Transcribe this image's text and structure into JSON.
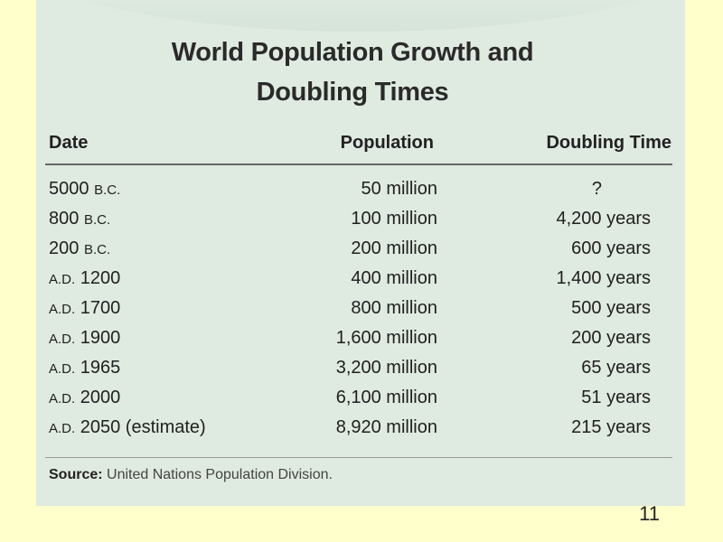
{
  "title_lines": [
    "World Population Growth and",
    "Doubling Times"
  ],
  "headers": {
    "date": "Date",
    "population": "Population",
    "doubling": "Doubling Time"
  },
  "rows": [
    {
      "date": "5000 B.C.",
      "population": "50 million",
      "doubling": "?"
    },
    {
      "date": "800 B.C.",
      "population": "100 million",
      "doubling": "4,200 years"
    },
    {
      "date": "200 B.C.",
      "population": "200 million",
      "doubling": "600 years"
    },
    {
      "date": "A.D. 1200",
      "population": "400 million",
      "doubling": "1,400 years"
    },
    {
      "date": "A.D. 1700",
      "population": "800 million",
      "doubling": "500 years"
    },
    {
      "date": "A.D. 1900",
      "population": "1,600 million",
      "doubling": "200 years"
    },
    {
      "date": "A.D. 1965",
      "population": "3,200 million",
      "doubling": "65 years"
    },
    {
      "date": "A.D. 2000",
      "population": "6,100 million",
      "doubling": "51 years"
    },
    {
      "date": "A.D. 2050 (estimate)",
      "population": "8,920 million",
      "doubling": "215 years"
    }
  ],
  "source": {
    "label": "Source:",
    "text": "United Nations Population Division."
  },
  "page_number": "11",
  "colors": {
    "background": "#ffffcc",
    "panel": "#dfeae0",
    "text": "#222222"
  }
}
